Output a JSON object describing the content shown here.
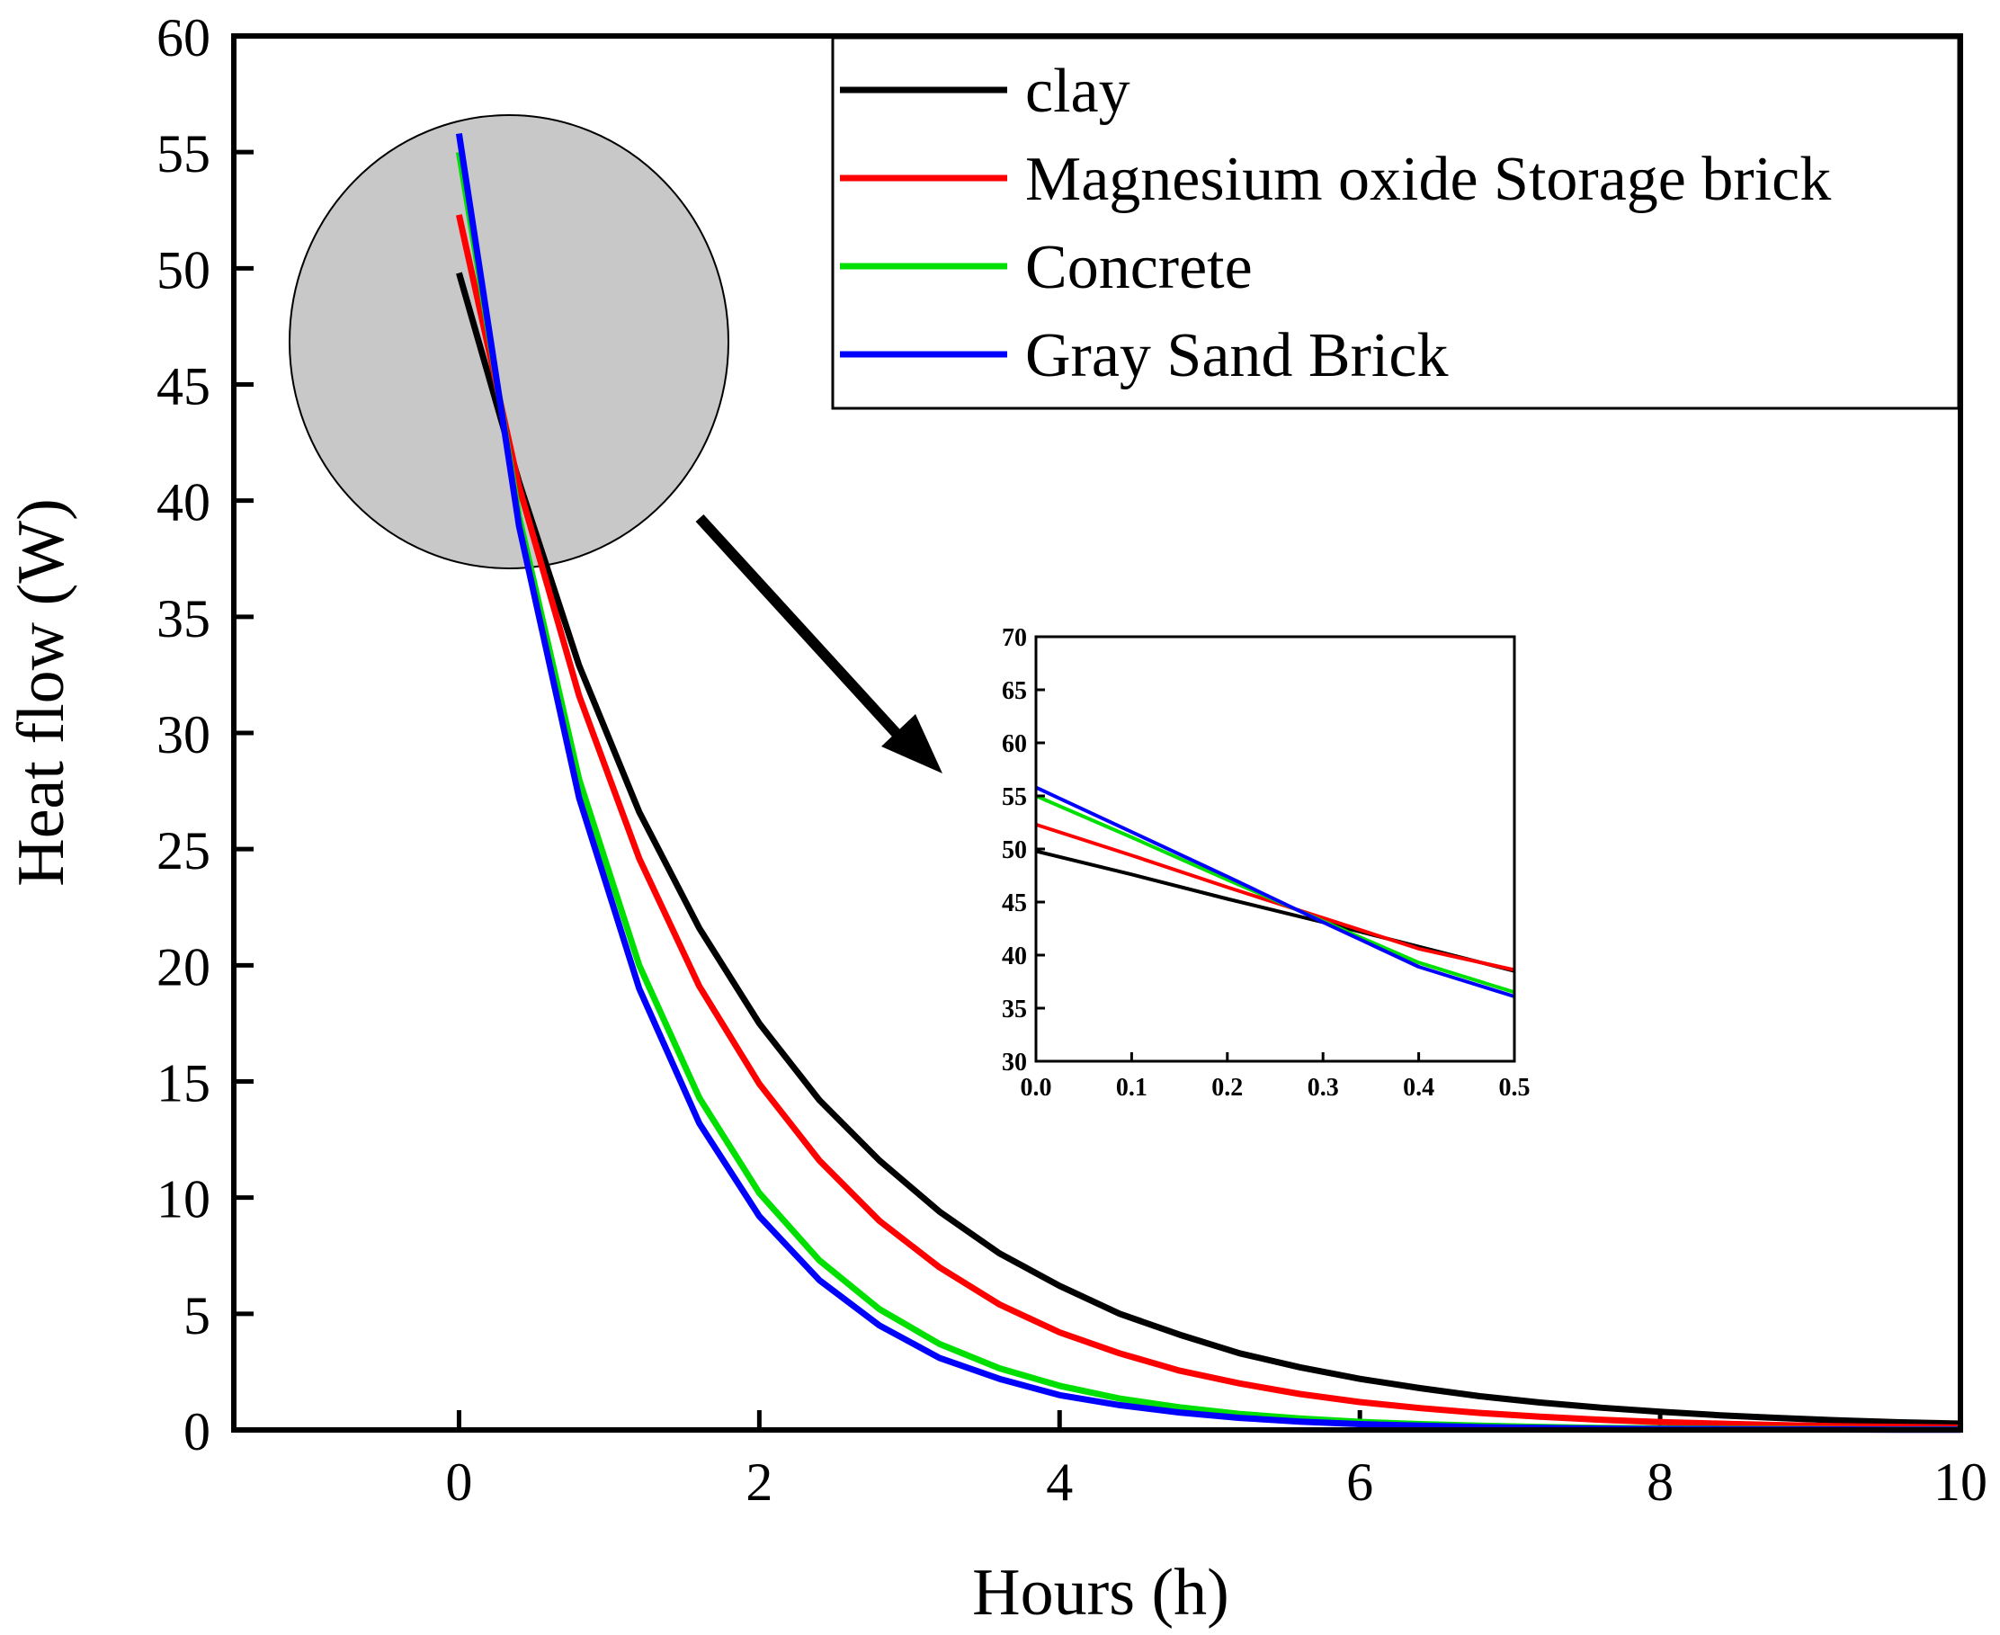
{
  "chart_data": [
    {
      "type": "line",
      "title": "",
      "xlabel": "Hours (h)",
      "ylabel": "Heat flow (W)",
      "xlim": [
        -1.5,
        10
      ],
      "ylim": [
        0,
        60
      ],
      "xticks": [
        0,
        2,
        4,
        6,
        8,
        10
      ],
      "xtick_labels": [
        "0",
        "2",
        "4",
        "6",
        "8",
        "10"
      ],
      "yticks": [
        0,
        5,
        10,
        15,
        20,
        25,
        30,
        35,
        40,
        45,
        50,
        55,
        60
      ],
      "ytick_labels": [
        "0",
        "5",
        "10",
        "15",
        "20",
        "25",
        "30",
        "35",
        "40",
        "45",
        "50",
        "55",
        "60"
      ],
      "grid": false,
      "legend_position": "top-right",
      "x": [
        0,
        0.4,
        0.8,
        1.2,
        1.6,
        2.0,
        2.4,
        2.8,
        3.2,
        3.6,
        4.0,
        4.4,
        4.8,
        5.2,
        5.6,
        6.0,
        6.4,
        6.8,
        7.2,
        7.6,
        8.0,
        8.4,
        8.8,
        9.2,
        9.6,
        10.0
      ],
      "series": [
        {
          "name": "clay",
          "color": "#000000",
          "values": [
            49.8,
            40.8,
            32.9,
            26.6,
            21.6,
            17.5,
            14.2,
            11.6,
            9.4,
            7.6,
            6.2,
            5.0,
            4.1,
            3.3,
            2.7,
            2.2,
            1.8,
            1.45,
            1.18,
            0.96,
            0.78,
            0.63,
            0.51,
            0.41,
            0.33,
            0.27
          ]
        },
        {
          "name": "Magnesium oxide Storage brick",
          "color": "#ff0000",
          "values": [
            52.3,
            40.6,
            31.6,
            24.6,
            19.1,
            14.9,
            11.6,
            9.0,
            7.0,
            5.4,
            4.2,
            3.3,
            2.55,
            2.0,
            1.55,
            1.2,
            0.94,
            0.73,
            0.57,
            0.44,
            0.34,
            0.27,
            0.21,
            0.16,
            0.13,
            0.1
          ]
        },
        {
          "name": "Concrete",
          "color": "#00e000",
          "values": [
            55.0,
            39.3,
            28.0,
            20.0,
            14.3,
            10.2,
            7.3,
            5.2,
            3.7,
            2.65,
            1.9,
            1.35,
            0.97,
            0.69,
            0.49,
            0.35,
            0.25,
            0.18,
            0.13,
            0.09,
            0.07,
            0.05,
            0.04,
            0.03,
            0.02,
            0.02
          ]
        },
        {
          "name": "Gray Sand Brick",
          "color": "#0000ff",
          "values": [
            55.8,
            38.9,
            27.2,
            19.0,
            13.2,
            9.2,
            6.45,
            4.5,
            3.1,
            2.2,
            1.5,
            1.07,
            0.75,
            0.52,
            0.36,
            0.25,
            0.18,
            0.12,
            0.09,
            0.06,
            0.04,
            0.03,
            0.02,
            0.02,
            0.01,
            0.01
          ]
        }
      ]
    },
    {
      "type": "line",
      "title": "",
      "xlabel": "",
      "ylabel": "",
      "xlim": [
        0,
        0.5
      ],
      "ylim": [
        30,
        70
      ],
      "xticks": [
        0,
        0.1,
        0.2,
        0.3,
        0.4,
        0.5
      ],
      "xtick_labels": [
        "0.0",
        "0.1",
        "0.2",
        "0.3",
        "0.4",
        "0.5"
      ],
      "yticks": [
        30,
        35,
        40,
        45,
        50,
        55,
        60,
        65,
        70
      ],
      "ytick_labels": [
        "30",
        "35",
        "40",
        "45",
        "50",
        "55",
        "60",
        "65",
        "70"
      ],
      "grid": false,
      "x": [
        0,
        0.1,
        0.2,
        0.3,
        0.4,
        0.5
      ],
      "series": [
        {
          "name": "clay",
          "color": "#000000",
          "values": [
            49.8,
            47.6,
            45.3,
            43.1,
            40.8,
            38.5
          ]
        },
        {
          "name": "Magnesium oxide Storage brick",
          "color": "#ff0000",
          "values": [
            52.3,
            49.4,
            46.4,
            43.5,
            40.6,
            38.6
          ]
        },
        {
          "name": "Concrete",
          "color": "#00e000",
          "values": [
            55.0,
            51.1,
            47.1,
            43.2,
            39.3,
            36.5
          ]
        },
        {
          "name": "Gray Sand Brick",
          "color": "#0000ff",
          "values": [
            55.8,
            51.6,
            47.4,
            43.1,
            38.9,
            36.1
          ]
        }
      ]
    }
  ],
  "colors": {
    "highlight_circle": "#c8c8c8"
  }
}
